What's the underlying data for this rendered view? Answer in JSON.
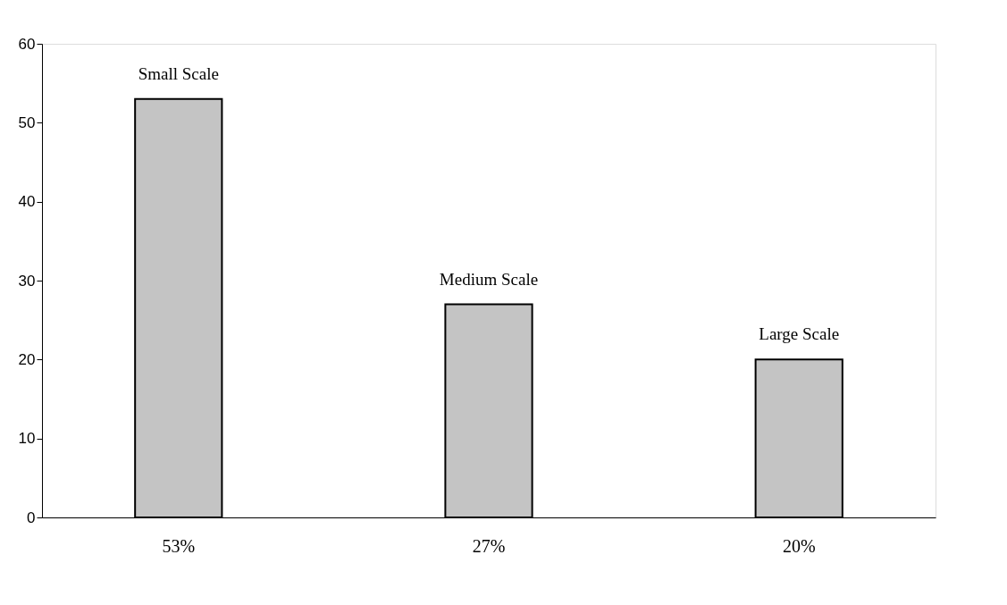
{
  "chart_data": {
    "type": "bar",
    "categories": [
      "53%",
      "27%",
      "20%"
    ],
    "values": [
      53,
      27,
      20
    ],
    "color": "#c4c4c4",
    "ylim": [
      0,
      60
    ],
    "yticks": [
      0,
      10,
      20,
      30,
      40,
      50,
      60
    ],
    "annotations": [
      {
        "text": "Small Scale",
        "x": "53%",
        "y": 53
      },
      {
        "text": "Medium  Scale",
        "x": "27%",
        "y": 27
      },
      {
        "text": "Large Scale",
        "x": "20%",
        "y": 20
      }
    ]
  }
}
